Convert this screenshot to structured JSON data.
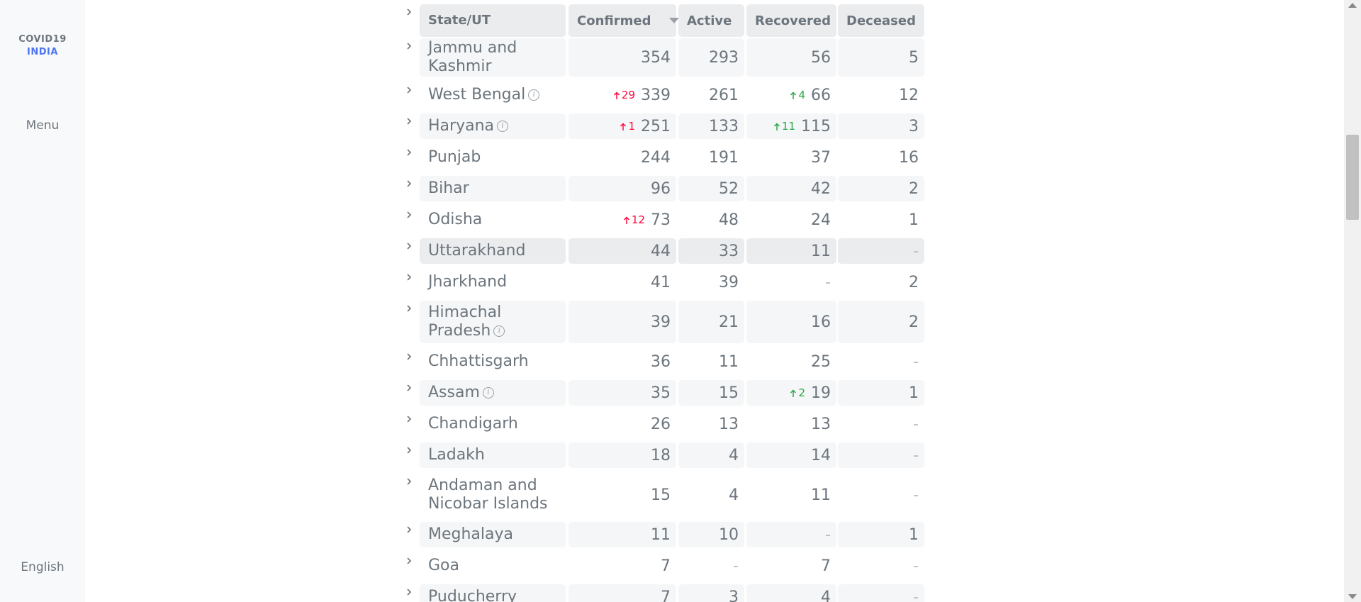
{
  "sidebar": {
    "logo_line1": "COVID19",
    "logo_line2": "INDIA",
    "menu_label": "Menu",
    "language_label": "English"
  },
  "table": {
    "headers": {
      "state": "State/UT",
      "confirmed": "Confirmed",
      "active": "Active",
      "recovered": "Recovered",
      "deceased": "Deceased"
    },
    "rows": [
      {
        "state": "Jammu and Kashmir",
        "confirmed": "354",
        "active": "293",
        "recovered": "56",
        "deceased": "5"
      },
      {
        "state": "West Bengal",
        "confirmed_delta": "29",
        "confirmed": "339",
        "active": "261",
        "recovered_delta": "4",
        "recovered": "66",
        "deceased": "12"
      },
      {
        "state": "Haryana",
        "confirmed_delta": "1",
        "confirmed": "251",
        "active": "133",
        "recovered_delta": "11",
        "recovered": "115",
        "deceased": "3"
      },
      {
        "state": "Punjab",
        "confirmed": "244",
        "active": "191",
        "recovered": "37",
        "deceased": "16"
      },
      {
        "state": "Bihar",
        "confirmed": "96",
        "active": "52",
        "recovered": "42",
        "deceased": "2"
      },
      {
        "state": "Odisha",
        "confirmed_delta": "12",
        "confirmed": "73",
        "active": "48",
        "recovered": "24",
        "deceased": "1"
      },
      {
        "state": "Uttarakhand",
        "confirmed": "44",
        "active": "33",
        "recovered": "11",
        "deceased": "-"
      },
      {
        "state": "Jharkhand",
        "confirmed": "41",
        "active": "39",
        "recovered": "-",
        "deceased": "2"
      },
      {
        "state": "Himachal Pradesh",
        "confirmed": "39",
        "active": "21",
        "recovered": "16",
        "deceased": "2"
      },
      {
        "state": "Chhattisgarh",
        "confirmed": "36",
        "active": "11",
        "recovered": "25",
        "deceased": "-"
      },
      {
        "state": "Assam",
        "confirmed": "35",
        "active": "15",
        "recovered_delta": "2",
        "recovered": "19",
        "deceased": "1"
      },
      {
        "state": "Chandigarh",
        "confirmed": "26",
        "active": "13",
        "recovered": "13",
        "deceased": "-"
      },
      {
        "state": "Ladakh",
        "confirmed": "18",
        "active": "4",
        "recovered": "14",
        "deceased": "-"
      },
      {
        "state": "Andaman and Nicobar Islands",
        "confirmed": "15",
        "active": "4",
        "recovered": "11",
        "deceased": "-"
      },
      {
        "state": "Meghalaya",
        "confirmed": "11",
        "active": "10",
        "recovered": "-",
        "deceased": "1"
      },
      {
        "state": "Goa",
        "confirmed": "7",
        "active": "-",
        "recovered": "7",
        "deceased": "-"
      },
      {
        "state": "Puducherry",
        "confirmed": "7",
        "active": "3",
        "recovered": "4",
        "deceased": "-"
      }
    ]
  },
  "colors": {
    "confirmed_delta": "#ff073a",
    "recovered_delta": "#28a745",
    "brand_blue": "#4c75f2"
  },
  "icons": [
    "chevron-right-icon",
    "info-icon",
    "sort-down-icon",
    "arrow-up-icon"
  ]
}
